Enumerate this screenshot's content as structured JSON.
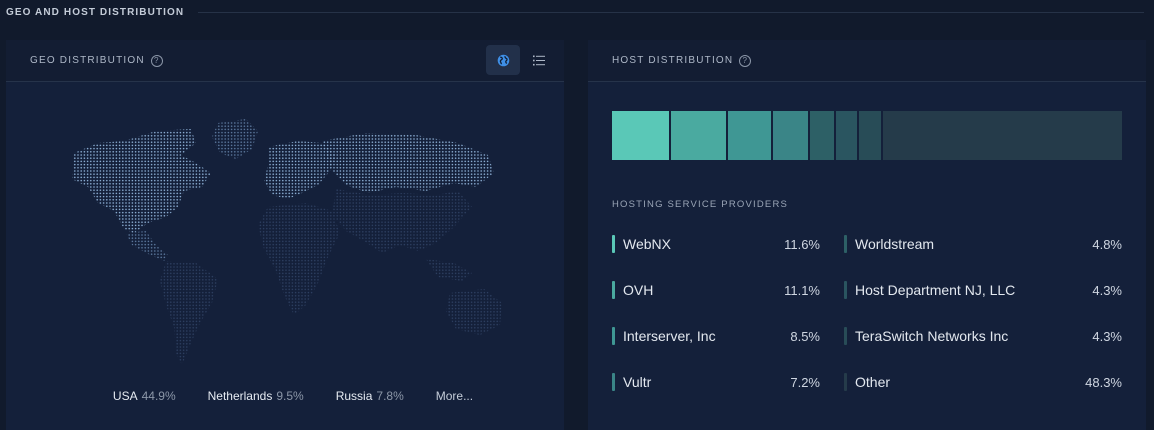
{
  "section": {
    "title": "GEO AND HOST DISTRIBUTION"
  },
  "geo": {
    "title": "GEO DISTRIBUTION",
    "help": "?",
    "toggle": {
      "map_icon": "globe-icon",
      "list_icon": "list-icon",
      "active": "map"
    },
    "countries": [
      {
        "name": "USA",
        "pct": "44.9%"
      },
      {
        "name": "Netherlands",
        "pct": "9.5%"
      },
      {
        "name": "Russia",
        "pct": "7.8%"
      }
    ],
    "more": "More..."
  },
  "host": {
    "title": "HOST DISTRIBUTION",
    "help": "?",
    "providers_label": "HOSTING SERVICE PROVIDERS",
    "providers": [
      {
        "name": "WebNX",
        "pct": "11.6%",
        "value": 11.6,
        "color": "#5ac8b7"
      },
      {
        "name": "OVH",
        "pct": "11.1%",
        "value": 11.1,
        "color": "#4aaaa0"
      },
      {
        "name": "Interserver, Inc",
        "pct": "8.5%",
        "value": 8.5,
        "color": "#3f9794"
      },
      {
        "name": "Vultr",
        "pct": "7.2%",
        "value": 7.2,
        "color": "#3a8587"
      },
      {
        "name": "Worldstream",
        "pct": "4.8%",
        "value": 4.8,
        "color": "#2d6066"
      },
      {
        "name": "Host Department NJ, LLC",
        "pct": "4.3%",
        "value": 4.3,
        "color": "#2a5560"
      },
      {
        "name": "TeraSwitch Networks Inc",
        "pct": "4.3%",
        "value": 4.3,
        "color": "#284c57"
      },
      {
        "name": "Other",
        "pct": "48.3%",
        "value": 48.3,
        "color": "#253b4a"
      }
    ]
  }
}
